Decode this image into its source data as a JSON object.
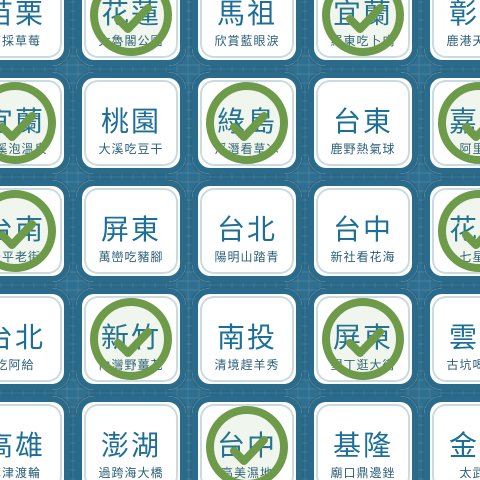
{
  "board": {
    "tiles": [
      {
        "name": "苗栗",
        "sub": "摘採草莓",
        "checked": false
      },
      {
        "name": "花蓮",
        "sub": "太魯閣公園",
        "checked": true
      },
      {
        "name": "馬祖",
        "sub": "欣賞藍眼淚",
        "checked": false
      },
      {
        "name": "宜蘭",
        "sub": "羅東吃卜肉",
        "checked": true
      },
      {
        "name": "彰化",
        "sub": "鹿港天后宮",
        "checked": false
      },
      {
        "name": "宜蘭",
        "sub": "礁溪泡溫泉",
        "checked": true
      },
      {
        "name": "桃園",
        "sub": "大溪吃豆干",
        "checked": false
      },
      {
        "name": "綠島",
        "sub": "浮潛看草冰",
        "checked": true
      },
      {
        "name": "台東",
        "sub": "鹿野熱氣球",
        "checked": false
      },
      {
        "name": "嘉義",
        "sub": "阿里山",
        "checked": true
      },
      {
        "name": "台南",
        "sub": "安平老街",
        "checked": true
      },
      {
        "name": "屏東",
        "sub": "萬巒吃豬腳",
        "checked": false
      },
      {
        "name": "台北",
        "sub": "陽明山踏青",
        "checked": false
      },
      {
        "name": "台中",
        "sub": "新社看花海",
        "checked": false
      },
      {
        "name": "花蓮",
        "sub": "七星潭",
        "checked": true
      },
      {
        "name": "台北",
        "sub": "吃阿給",
        "checked": false
      },
      {
        "name": "新竹",
        "sub": "內灣野薑花",
        "checked": true
      },
      {
        "name": "南投",
        "sub": "清境趕羊秀",
        "checked": false
      },
      {
        "name": "屏東",
        "sub": "墾丁逛大街",
        "checked": true
      },
      {
        "name": "雲林",
        "sub": "古坑喝咖啡",
        "checked": false
      },
      {
        "name": "高雄",
        "sub": "旗津渡輪",
        "checked": false
      },
      {
        "name": "澎湖",
        "sub": "過跨海大橋",
        "checked": false
      },
      {
        "name": "台中",
        "sub": "高美濕地",
        "checked": true
      },
      {
        "name": "基隆",
        "sub": "廟口鼎邊銼",
        "checked": false
      },
      {
        "name": "金門",
        "sub": "太武山",
        "checked": false
      }
    ]
  },
  "colors": {
    "background": "#2f6f8f",
    "tile": "#ffffff",
    "text": "#1d6f97",
    "subtext": "#2b5f79",
    "check": "#6d9b4a"
  },
  "icons": {
    "check": "check-icon"
  }
}
